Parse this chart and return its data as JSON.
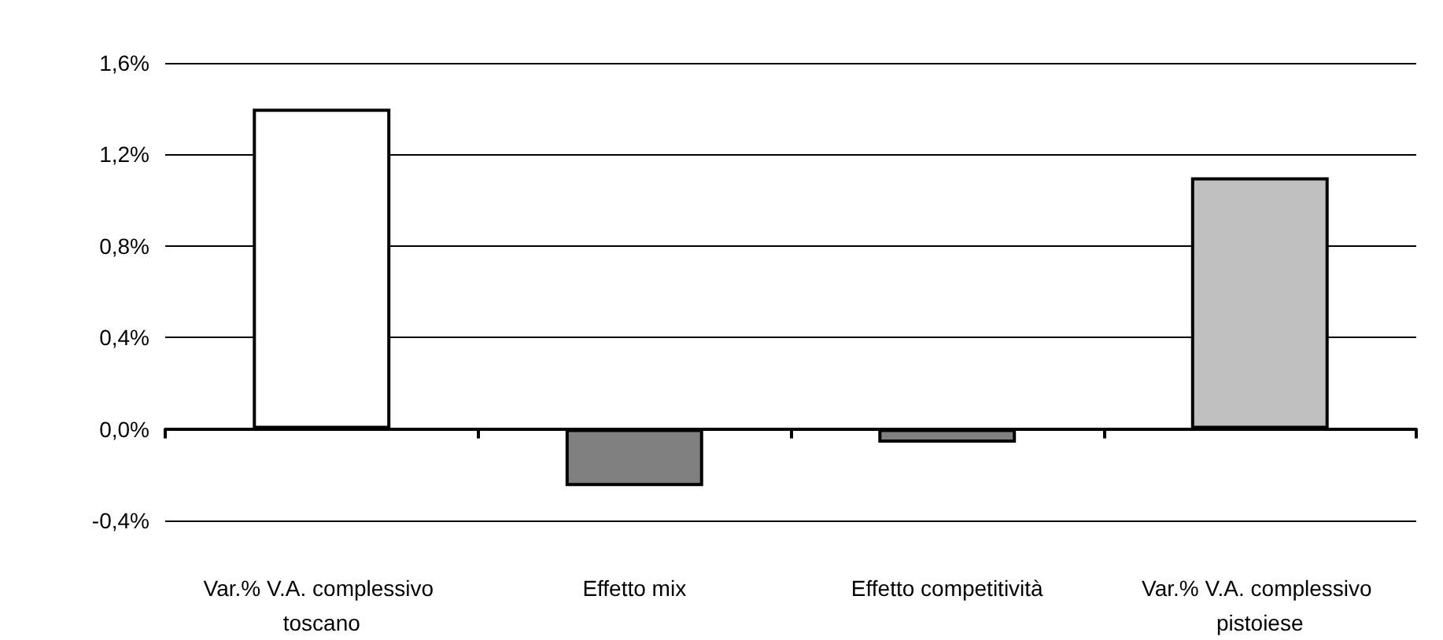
{
  "chart_data": {
    "type": "bar",
    "categories": [
      "Var.% V.A. complessivo toscano",
      "Effetto mix",
      "Effetto competitività",
      "Var.% V.A. complessivo pistoiese"
    ],
    "values": [
      1.4,
      -0.25,
      -0.06,
      1.1
    ],
    "colors": [
      "#ffffff",
      "#808080",
      "#808080",
      "#c0c0c0"
    ],
    "ylim": [
      -0.4,
      1.6
    ],
    "yticks": [
      {
        "value": -0.4,
        "label": "-0,4%"
      },
      {
        "value": 0,
        "label": "0,0%"
      },
      {
        "value": 0.4,
        "label": "0,4%"
      },
      {
        "value": 0.8,
        "label": "0,8%"
      },
      {
        "value": 1.2,
        "label": "1,2%"
      },
      {
        "value": 1.6,
        "label": "1,6%"
      }
    ],
    "grid": "y"
  }
}
